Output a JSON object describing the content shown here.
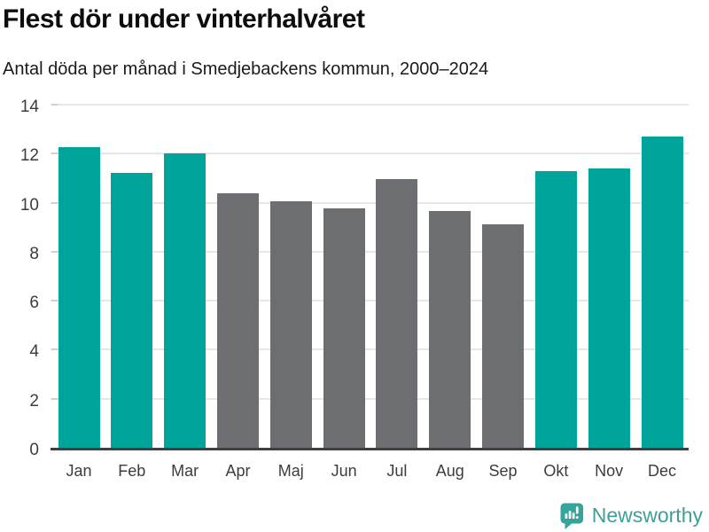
{
  "chart_data": {
    "type": "bar",
    "title": "Flest dör under vinterhalvåret",
    "subtitle": "Antal döda per månad i Smedjebackens kommun, 2000–2024",
    "categories": [
      "Jan",
      "Feb",
      "Mar",
      "Apr",
      "Maj",
      "Jun",
      "Jul",
      "Aug",
      "Sep",
      "Okt",
      "Nov",
      "Dec"
    ],
    "values": [
      12.25,
      11.2,
      12.0,
      10.4,
      10.05,
      9.75,
      10.95,
      9.65,
      9.1,
      11.3,
      11.4,
      12.7
    ],
    "bar_color_keys": [
      "teal",
      "teal",
      "teal",
      "gray",
      "gray",
      "gray",
      "gray",
      "gray",
      "gray",
      "teal",
      "teal",
      "teal"
    ],
    "colors": {
      "teal": "#00a49a",
      "gray": "#6d6e71"
    },
    "xlabel": "",
    "ylabel": "",
    "ylim": [
      0,
      14
    ],
    "yticks": [
      0,
      2,
      4,
      6,
      8,
      10,
      12,
      14
    ],
    "grid": true,
    "legend": "none"
  },
  "branding": {
    "name": "Newsworthy",
    "icon": "bar-chart-speech-bubble",
    "icon_color": "#35a49d",
    "text_color": "#3f9e99"
  }
}
